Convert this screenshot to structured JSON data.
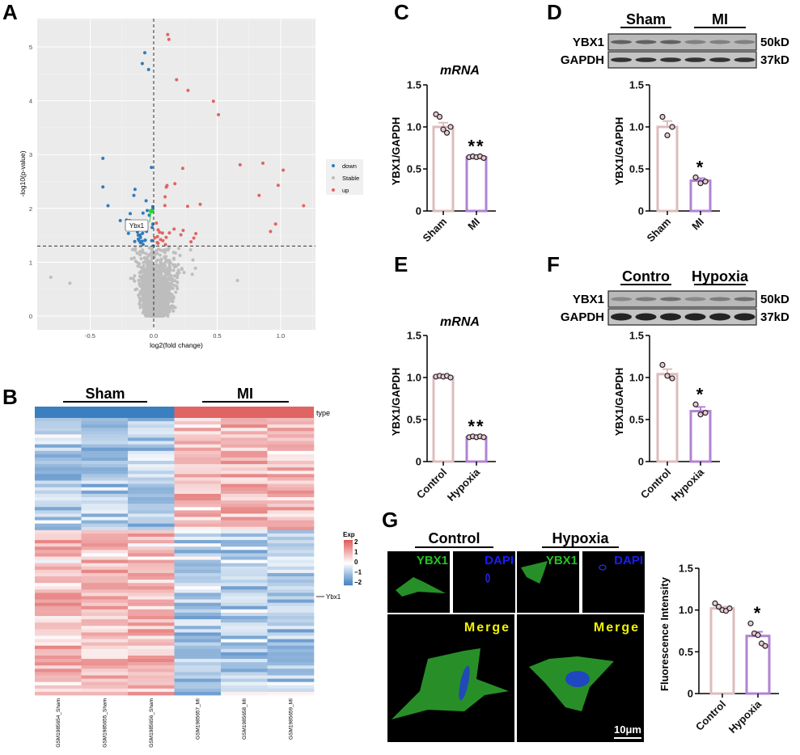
{
  "panel_letters": [
    "A",
    "B",
    "C",
    "D",
    "E",
    "F",
    "G"
  ],
  "chart_data": [
    {
      "id": "A",
      "type": "scatter",
      "title": "",
      "xlabel": "log2(fold change)",
      "ylabel": "-log10(p-value)",
      "xlim": [
        -0.92,
        1.25
      ],
      "ylim": [
        -0.1,
        5.45
      ],
      "xticks": [
        "-0.5",
        "0.0",
        "0.5",
        "1.0"
      ],
      "xtick_values": [
        -0.5,
        0,
        0.5,
        1.0
      ],
      "yticks": [
        "0",
        "1",
        "2",
        "3",
        "4",
        "5"
      ],
      "ytick_values": [
        0,
        1,
        2,
        3,
        4,
        5
      ],
      "grid": true,
      "thresholds": {
        "neg_log10_p": 1.3,
        "log2fc": 0
      },
      "legend": {
        "placement": "right",
        "entries": [
          {
            "label": "down",
            "color": "#2e7bbf"
          },
          {
            "label": "Stable",
            "color": "#bdbdbd"
          },
          {
            "label": "up",
            "color": "#e06464"
          }
        ]
      },
      "annotation": {
        "label": "Ybx1",
        "x": -0.02,
        "y": 1.95,
        "color": "#22dd22"
      },
      "notable_points": [
        {
          "x": 0.11,
          "y": 5.23
        },
        {
          "x": 0.12,
          "y": 5.14
        },
        {
          "x": -0.07,
          "y": 4.89
        },
        {
          "x": -0.09,
          "y": 4.69
        },
        {
          "x": -0.04,
          "y": 4.58
        },
        {
          "x": 0.18,
          "y": 4.39
        },
        {
          "x": 0.27,
          "y": 4.19
        },
        {
          "x": 0.47,
          "y": 3.99
        },
        {
          "x": 0.51,
          "y": 3.74
        },
        {
          "x": 0.86,
          "y": 2.84
        },
        {
          "x": 0.68,
          "y": 2.81
        },
        {
          "x": 1.02,
          "y": 2.71
        },
        {
          "x": 0.98,
          "y": 2.43
        },
        {
          "x": 1.18,
          "y": 2.05
        },
        {
          "x": 0.83,
          "y": 2.24
        },
        {
          "x": -0.81,
          "y": 0.72
        },
        {
          "x": -0.66,
          "y": 0.61
        },
        {
          "x": 0.66,
          "y": 0.66
        },
        {
          "x": -0.4,
          "y": 2.93
        },
        {
          "x": -0.4,
          "y": 2.4
        },
        {
          "x": -0.36,
          "y": 2.05
        },
        {
          "x": 0.92,
          "y": 1.57
        },
        {
          "x": 0.96,
          "y": 1.71
        }
      ]
    },
    {
      "id": "B",
      "type": "heatmap",
      "groups": [
        {
          "label": "Sham",
          "color": "#3a7fc0"
        },
        {
          "label": "MI",
          "color": "#e06464"
        }
      ],
      "annotation_label": "type",
      "samples": [
        "GSM1985654_Sham",
        "GSM1985655_Sham",
        "GSM1985656_Sham",
        "GSM1985657_MI",
        "GSM1985658_MI",
        "GSM1985659_MI"
      ],
      "legend": {
        "title": "Exp",
        "ticks": [
          "2",
          "1",
          "0",
          "−1",
          "−2"
        ],
        "range": [
          -2,
          2
        ],
        "low_color": "#3a7bbf",
        "mid_color": "#ffffff",
        "high_color": "#e05a5a"
      },
      "row_annotation": "Ybx1",
      "cluster_sizes": {
        "up_in_MI": 34,
        "down_in_MI": 50
      }
    },
    {
      "id": "C",
      "type": "bar",
      "title": "mRNA",
      "ylabel": "YBX1/GAPDH",
      "ylim": [
        0,
        1.5
      ],
      "yticks": [
        "0",
        "0.5",
        "1.0",
        "1.5"
      ],
      "categories": [
        "Sham",
        "MI"
      ],
      "values": [
        1.0,
        0.64
      ],
      "errors": [
        0.05,
        0.01
      ],
      "points": [
        [
          1.15,
          1.12,
          0.97,
          0.93,
          1.0
        ],
        [
          0.64,
          0.65,
          0.64,
          0.65,
          0.63
        ]
      ],
      "significance": [
        "",
        "**"
      ],
      "colors": [
        "#dcbcbc",
        "#b183d3"
      ]
    },
    {
      "id": "D",
      "type": "bar",
      "title": "",
      "ylabel": "YBX1/GAPDH",
      "ylim": [
        0,
        1.5
      ],
      "yticks": [
        "0",
        "0.5",
        "1.0",
        "1.5"
      ],
      "categories": [
        "Sham",
        "MI"
      ],
      "values": [
        1.0,
        0.36
      ],
      "errors": [
        0.07,
        0.03
      ],
      "points": [
        [
          1.12,
          0.9,
          1.0
        ],
        [
          0.4,
          0.33,
          0.35
        ]
      ],
      "significance": [
        "",
        "*"
      ],
      "colors": [
        "#dcbcbc",
        "#b183d3"
      ]
    },
    {
      "id": "E",
      "type": "bar",
      "title": "mRNA",
      "ylabel": "YBX1/GAPDH",
      "ylim": [
        0,
        1.5
      ],
      "yticks": [
        "0",
        "0.5",
        "1.0",
        "1.5"
      ],
      "categories": [
        "Control",
        "Hypoxia"
      ],
      "values": [
        1.01,
        0.29
      ],
      "errors": [
        0.01,
        0.01
      ],
      "points": [
        [
          1.01,
          1.02,
          1.01,
          1.02,
          1.0
        ],
        [
          0.29,
          0.3,
          0.29,
          0.3,
          0.29
        ]
      ],
      "significance": [
        "",
        "**"
      ],
      "colors": [
        "#dcbcbc",
        "#b183d3"
      ]
    },
    {
      "id": "F",
      "type": "bar",
      "title": "",
      "ylabel": "YBX1/GAPDH",
      "ylim": [
        0,
        1.5
      ],
      "yticks": [
        "0",
        "0.5",
        "1.0",
        "1.5"
      ],
      "categories": [
        "Control",
        "Hypoxia"
      ],
      "values": [
        1.04,
        0.6
      ],
      "errors": [
        0.06,
        0.05
      ],
      "points": [
        [
          1.15,
          1.02,
          0.99
        ],
        [
          0.68,
          0.56,
          0.58
        ]
      ],
      "significance": [
        "",
        "*"
      ],
      "colors": [
        "#dcbcbc",
        "#b183d3"
      ]
    },
    {
      "id": "G",
      "type": "bar",
      "title": "",
      "ylabel": "Fluorescence Intensity",
      "ylim": [
        0,
        1.5
      ],
      "yticks": [
        "0",
        "0.5",
        "1.0",
        "1.5"
      ],
      "categories": [
        "Control",
        "Hypoxia"
      ],
      "values": [
        1.02,
        0.69
      ],
      "errors": [
        0.02,
        0.05
      ],
      "points": [
        [
          1.08,
          1.04,
          1.0,
          0.99,
          1.02
        ],
        [
          0.84,
          0.72,
          0.7,
          0.6,
          0.57
        ]
      ],
      "significance": [
        "",
        "*"
      ],
      "colors": [
        "#dcbcbc",
        "#b183d3"
      ]
    }
  ],
  "blots": {
    "D": {
      "groups": [
        "Sham",
        "MI"
      ],
      "rows": [
        {
          "label": "YBX1",
          "size": "50kD"
        },
        {
          "label": "GAPDH",
          "size": "37kD"
        }
      ]
    },
    "F": {
      "groups": [
        "Contro",
        "Hypoxia"
      ],
      "rows": [
        {
          "label": "YBX1",
          "size": "50kD"
        },
        {
          "label": "GAPDH",
          "size": "37kD"
        }
      ]
    }
  },
  "microscopy": {
    "groups": [
      "Control",
      "Hypoxia"
    ],
    "channels": {
      "ybx1": "YBX1",
      "dapi": "DAPI",
      "merge": "Merge"
    },
    "channel_colors": {
      "ybx1": "#22c322",
      "dapi": "#1a1aff",
      "merge": "#f2f200"
    },
    "scale_bar": "10μm"
  }
}
